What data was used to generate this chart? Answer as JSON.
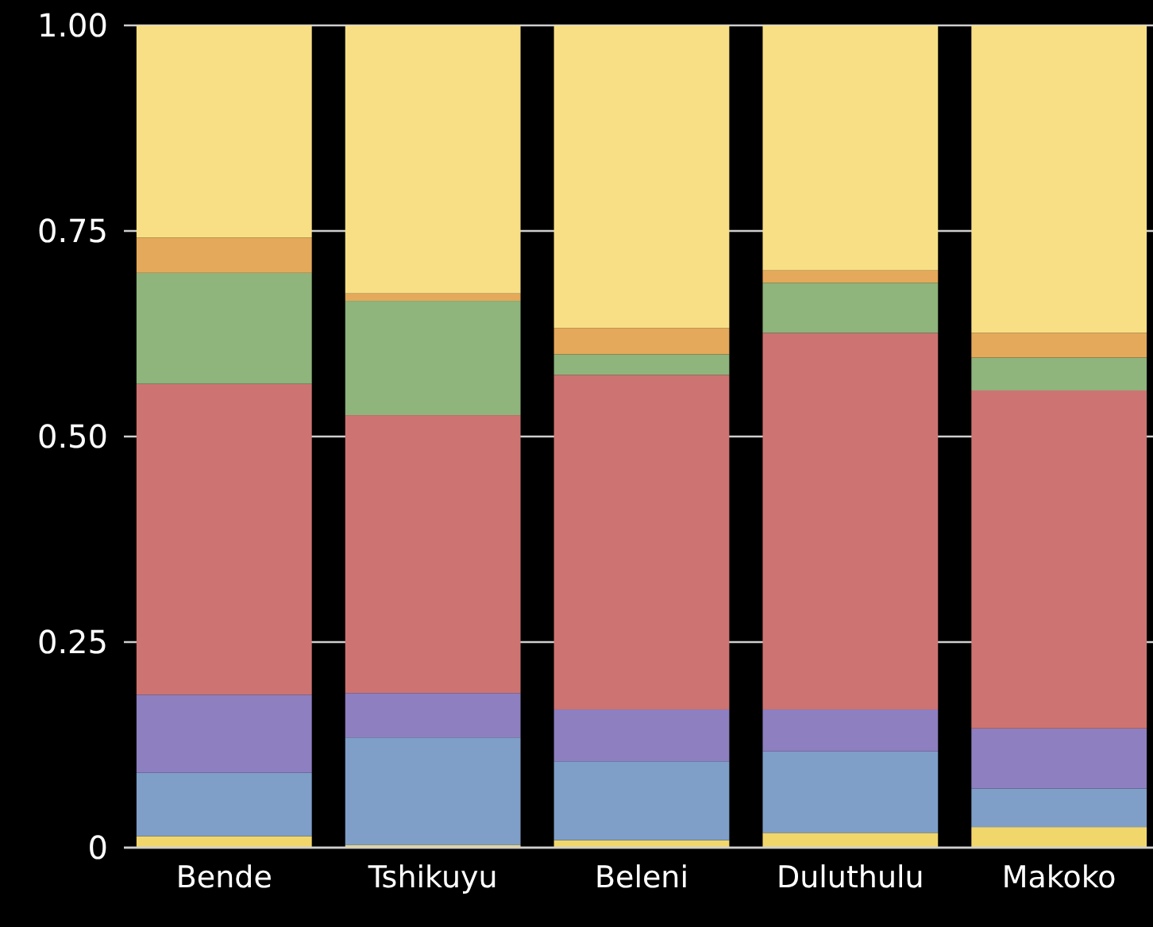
{
  "chart_data": {
    "type": "bar",
    "stacked": true,
    "categories": [
      "Bende",
      "Tshikuyu",
      "Beleni",
      "Duluthulu",
      "Makoko"
    ],
    "series": [
      {
        "color": "#f1d66c",
        "values": [
          0.014,
          0.003,
          0.009,
          0.018,
          0.025
        ]
      },
      {
        "color": "#7f9fc8",
        "values": [
          0.077,
          0.131,
          0.096,
          0.099,
          0.047
        ]
      },
      {
        "color": "#8e7fc0",
        "values": [
          0.095,
          0.054,
          0.063,
          0.051,
          0.073
        ]
      },
      {
        "color": "#cd7472",
        "values": [
          0.378,
          0.338,
          0.407,
          0.458,
          0.411
        ]
      },
      {
        "color": "#8fb47c",
        "values": [
          0.135,
          0.139,
          0.025,
          0.061,
          0.04
        ]
      },
      {
        "color": "#e4a95a",
        "values": [
          0.043,
          0.009,
          0.032,
          0.015,
          0.03
        ]
      },
      {
        "color": "#f8df85",
        "values": [
          0.258,
          0.326,
          0.368,
          0.298,
          0.374
        ]
      }
    ],
    "ylim": [
      0,
      1
    ],
    "yticks": [
      0,
      0.25,
      {
        "value": 0.5,
        "label": "0.50"
      },
      0.75,
      {
        "value": 1,
        "label": "1.00"
      }
    ],
    "grid": "y"
  }
}
